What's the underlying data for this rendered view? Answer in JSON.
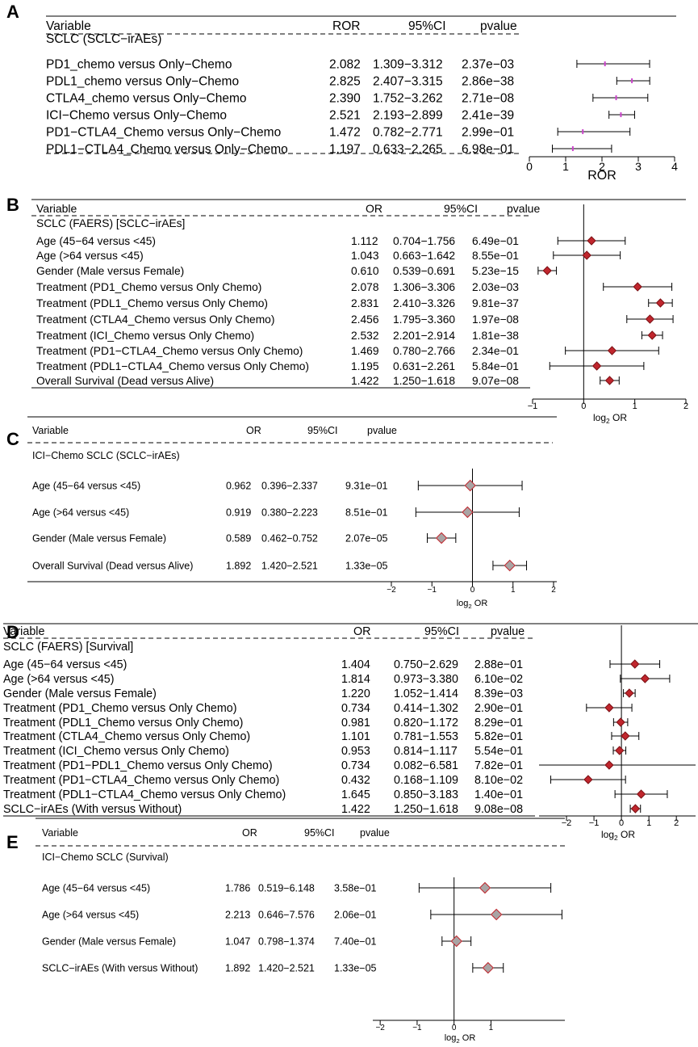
{
  "chart_data": [
    {
      "type": "forest",
      "letter": "A",
      "measure": "ROR",
      "headers": {
        "variable": "Variable",
        "estimate": "ROR",
        "ci": "95%CI",
        "pvalue": "pvalue"
      },
      "group": "SCLC (SCLC−irAEs)",
      "log_scale": false,
      "xlim": [
        0,
        4
      ],
      "ticks": [
        0,
        1,
        2,
        3,
        4
      ],
      "tick_labels": [
        "0",
        "1",
        "2",
        "3",
        "4"
      ],
      "ref_line": null,
      "xlabel": "ROR",
      "marker": "tick",
      "rows": [
        {
          "label": "PD1_chemo versus Only−Chemo",
          "est": 2.082,
          "ci": "1.309−3.312",
          "lo": 1.309,
          "hi": 3.312,
          "p": "2.37e−03"
        },
        {
          "label": "PDL1_chemo versus Only−Chemo",
          "est": 2.825,
          "ci": "2.407−3.315",
          "lo": 2.407,
          "hi": 3.315,
          "p": "2.86e−38"
        },
        {
          "label": "CTLA4_chemo versus Only−Chemo",
          "est": 2.39,
          "est_str": "2.390",
          "ci": "1.752−3.262",
          "lo": 1.752,
          "hi": 3.262,
          "p": "2.71e−08"
        },
        {
          "label": "ICI−Chemo versus Only−Chemo",
          "est": 2.521,
          "ci": "2.193−2.899",
          "lo": 2.193,
          "hi": 2.899,
          "p": "2.41e−39"
        },
        {
          "label": "PD1−CTLA4_Chemo versus Only−Chemo",
          "est": 1.472,
          "ci": "0.782−2.771",
          "lo": 0.782,
          "hi": 2.771,
          "p": "2.99e−01"
        },
        {
          "label": "PDL1−CTLA4_Chemo versus Only−Chemo",
          "est": 1.197,
          "ci": "0.633−2.265",
          "lo": 0.633,
          "hi": 2.265,
          "p": "6.98e−01"
        }
      ]
    },
    {
      "type": "forest",
      "letter": "B",
      "measure": "OR",
      "headers": {
        "variable": "Variable",
        "estimate": "OR",
        "ci": "95%CI",
        "pvalue": "pvalue"
      },
      "group": "SCLC (FAERS) [SCLC−irAEs]",
      "log_scale": true,
      "xlim": [
        -1,
        2
      ],
      "ticks": [
        -1,
        0,
        1,
        2
      ],
      "tick_labels": [
        "−1",
        "0",
        "1",
        "2"
      ],
      "ref_line": 0,
      "xlabel": "log2 OR",
      "marker": "diamond-red",
      "rows": [
        {
          "label": "Age (45−64 versus <45)",
          "est": 1.112,
          "ci": "0.704−1.756",
          "lo": 0.704,
          "hi": 1.756,
          "p": "6.49e−01"
        },
        {
          "label": "Age (>64 versus <45)",
          "est": 1.043,
          "ci": "0.663−1.642",
          "lo": 0.663,
          "hi": 1.642,
          "p": "8.55e−01"
        },
        {
          "label": "Gender (Male versus Female)",
          "est": 0.61,
          "est_str": "0.610",
          "ci": "0.539−0.691",
          "lo": 0.539,
          "hi": 0.691,
          "p": "5.23e−15"
        },
        {
          "label": "Treatment (PD1_Chemo versus Only Chemo)",
          "est": 2.078,
          "ci": "1.306−3.306",
          "lo": 1.306,
          "hi": 3.306,
          "p": "2.03e−03"
        },
        {
          "label": "Treatment (PDL1_Chemo versus Only Chemo)",
          "est": 2.831,
          "ci": "2.410−3.326",
          "lo": 2.41,
          "hi": 3.326,
          "p": "9.81e−37"
        },
        {
          "label": "Treatment (CTLA4_Chemo versus Only Chemo)",
          "est": 2.456,
          "ci": "1.795−3.360",
          "lo": 1.795,
          "hi": 3.36,
          "p": "1.97e−08"
        },
        {
          "label": "Treatment (ICI_Chemo versus Only Chemo)",
          "est": 2.532,
          "ci": "2.201−2.914",
          "lo": 2.201,
          "hi": 2.914,
          "p": "1.81e−38"
        },
        {
          "label": "Treatment (PD1−CTLA4_Chemo versus Only Chemo)",
          "est": 1.469,
          "ci": "0.780−2.766",
          "lo": 0.78,
          "hi": 2.766,
          "p": "2.34e−01"
        },
        {
          "label": "Treatment (PDL1−CTLA4_Chemo versus Only Chemo)",
          "est": 1.195,
          "ci": "0.631−2.261",
          "lo": 0.631,
          "hi": 2.261,
          "p": "5.84e−01"
        },
        {
          "label": "Overall Survival (Dead versus Alive)",
          "est": 1.422,
          "ci": "1.250−1.618",
          "lo": 1.25,
          "hi": 1.618,
          "p": "9.07e−08"
        }
      ]
    },
    {
      "type": "forest",
      "letter": "C",
      "measure": "OR",
      "headers": {
        "variable": "Variable",
        "estimate": "OR",
        "ci": "95%CI",
        "pvalue": "pvalue"
      },
      "group": "ICI−Chemo SCLC (SCLC−irAEs)",
      "log_scale": true,
      "xlim": [
        -2,
        2
      ],
      "ticks": [
        -2,
        -1,
        0,
        1,
        2
      ],
      "tick_labels": [
        "−2",
        "−1",
        "0",
        "1",
        "2"
      ],
      "ref_line": 0,
      "xlabel": "log2 OR",
      "marker": "diamond-grey",
      "rows": [
        {
          "label": "Age (45−64 versus <45)",
          "est": 0.962,
          "ci": "0.396−2.337",
          "lo": 0.396,
          "hi": 2.337,
          "p": "9.31e−01"
        },
        {
          "label": "Age (>64 versus <45)",
          "est": 0.919,
          "ci": "0.380−2.223",
          "lo": 0.38,
          "hi": 2.223,
          "p": "8.51e−01"
        },
        {
          "label": "Gender (Male versus Female)",
          "est": 0.589,
          "ci": "0.462−0.752",
          "lo": 0.462,
          "hi": 0.752,
          "p": "2.07e−05"
        },
        {
          "label": "Overall Survival (Dead versus Alive)",
          "est": 1.892,
          "ci": "1.420−2.521",
          "lo": 1.42,
          "hi": 2.521,
          "p": "1.33e−05"
        }
      ]
    },
    {
      "type": "forest",
      "letter": "D",
      "measure": "OR",
      "headers": {
        "variable": "Variable",
        "estimate": "OR",
        "ci": "95%CI",
        "pvalue": "pvalue"
      },
      "group": "SCLC (FAERS) [Survival]",
      "log_scale": true,
      "xlim": [
        -3,
        2.7
      ],
      "ticks": [
        -2,
        -1,
        0,
        1,
        2
      ],
      "tick_labels": [
        "−2",
        "−1",
        "0",
        "1",
        "2"
      ],
      "ref_line": 0,
      "xlabel": "log2 OR",
      "marker": "diamond-red",
      "rows": [
        {
          "label": "Age (45−64 versus <45)",
          "est": 1.404,
          "ci": "0.750−2.629",
          "lo": 0.75,
          "hi": 2.629,
          "p": "2.88e−01"
        },
        {
          "label": "Age (>64 versus <45)",
          "est": 1.814,
          "ci": "0.973−3.380",
          "lo": 0.973,
          "hi": 3.38,
          "p": "6.10e−02"
        },
        {
          "label": "Gender (Male versus Female)",
          "est": 1.22,
          "est_str": "1.220",
          "ci": "1.052−1.414",
          "lo": 1.052,
          "hi": 1.414,
          "p": "8.39e−03"
        },
        {
          "label": "Treatment (PD1_Chemo versus Only Chemo)",
          "est": 0.734,
          "ci": "0.414−1.302",
          "lo": 0.414,
          "hi": 1.302,
          "p": "2.90e−01"
        },
        {
          "label": "Treatment (PDL1_Chemo versus Only Chemo)",
          "est": 0.981,
          "ci": "0.820−1.172",
          "lo": 0.82,
          "hi": 1.172,
          "p": "8.29e−01"
        },
        {
          "label": "Treatment (CTLA4_Chemo versus Only Chemo)",
          "est": 1.101,
          "ci": "0.781−1.553",
          "lo": 0.781,
          "hi": 1.553,
          "p": "5.82e−01"
        },
        {
          "label": "Treatment (ICI_Chemo versus Only Chemo)",
          "est": 0.953,
          "ci": "0.814−1.117",
          "lo": 0.814,
          "hi": 1.117,
          "p": "5.54e−01"
        },
        {
          "label": "Treatment (PD1−PDL1_Chemo versus Only Chemo)",
          "est": 0.734,
          "ci": "0.082−6.581",
          "lo": 0.082,
          "hi": 6.581,
          "p": "7.82e−01"
        },
        {
          "label": "Treatment (PD1−CTLA4_Chemo versus Only Chemo)",
          "est": 0.432,
          "ci": "0.168−1.109",
          "lo": 0.168,
          "hi": 1.109,
          "p": "8.10e−02"
        },
        {
          "label": "Treatment (PDL1−CTLA4_Chemo versus Only Chemo)",
          "est": 1.645,
          "ci": "0.850−3.183",
          "lo": 0.85,
          "hi": 3.183,
          "p": "1.40e−01"
        },
        {
          "label": "SCLC−irAEs (With versus Without)",
          "est": 1.422,
          "ci": "1.250−1.618",
          "lo": 1.25,
          "hi": 1.618,
          "p": "9.08e−08"
        }
      ]
    },
    {
      "type": "forest",
      "letter": "E",
      "measure": "OR",
      "headers": {
        "variable": "Variable",
        "estimate": "OR",
        "ci": "95%CI",
        "pvalue": "pvalue"
      },
      "group": "ICI−Chemo SCLC (Survival)",
      "log_scale": true,
      "xlim": [
        -2.2,
        3
      ],
      "ticks": [
        -2,
        -1,
        0,
        1
      ],
      "tick_labels": [
        "−2",
        "−1",
        "0",
        "1"
      ],
      "ref_line": 0,
      "xlabel": "log2 OR",
      "marker": "diamond-grey",
      "rows": [
        {
          "label": "Age (45−64 versus <45)",
          "est": 1.786,
          "ci": "0.519−6.148",
          "lo": 0.519,
          "hi": 6.148,
          "p": "3.58e−01"
        },
        {
          "label": "Age (>64 versus <45)",
          "est": 2.213,
          "ci": "0.646−7.576",
          "lo": 0.646,
          "hi": 7.576,
          "p": "2.06e−01"
        },
        {
          "label": "Gender (Male versus Female)",
          "est": 1.047,
          "ci": "0.798−1.374",
          "lo": 0.798,
          "hi": 1.374,
          "p": "7.40e−01"
        },
        {
          "label": "SCLC−irAEs (With versus Without)",
          "est": 1.892,
          "ci": "1.420−2.521",
          "lo": 1.42,
          "hi": 2.521,
          "p": "1.33e−05"
        }
      ]
    }
  ],
  "colors": {
    "diamond_red": "#c0262d",
    "diamond_red_stroke": "#7a1014",
    "diamond_grey": "#a9a4a4",
    "diamond_grey_stroke": "#c0262d",
    "tick_marker": "#cc44cc",
    "line": "#000000"
  }
}
